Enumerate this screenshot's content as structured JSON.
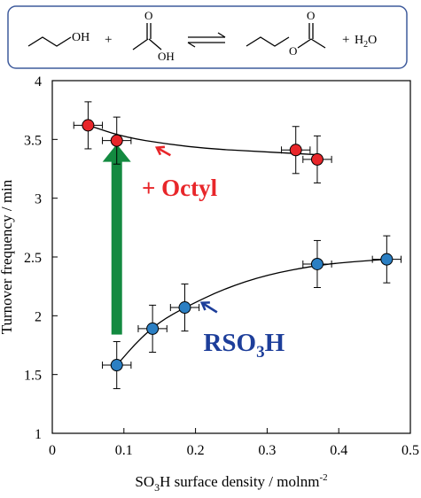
{
  "scheme": {
    "reactant1_label": "OH",
    "plus1": "+",
    "acid_carbonyl_o": "O",
    "acid_hydroxyl": "OH",
    "ester_carbonyl_o": "O",
    "ester_o": "O",
    "plus2": "+",
    "water_prefix": "H",
    "water_sub": "2",
    "water_suffix": "O"
  },
  "chart_data": {
    "type": "scatter",
    "ylabel": "Turnover frequency / min",
    "xlabel_prefix": "SO",
    "xlabel_sub": "3",
    "xlabel_rest": "H surface density / molnm",
    "xlabel_sup": "-2",
    "xlim": [
      0,
      0.5
    ],
    "ylim": [
      1,
      4
    ],
    "x_ticks": [
      "0",
      "0.1",
      "0.2",
      "0.3",
      "0.4",
      "0.5"
    ],
    "y_ticks": [
      "1",
      "1.5",
      "2",
      "2.5",
      "3",
      "3.5",
      "4"
    ],
    "grid": false,
    "series": [
      {
        "color": "#e8262a",
        "label_text": "+ Octyl",
        "points": [
          {
            "x": 0.05,
            "y": 3.62,
            "xerr": 0.02,
            "yerr": 0.2
          },
          {
            "x": 0.09,
            "y": 3.49,
            "xerr": 0.02,
            "yerr": 0.2
          },
          {
            "x": 0.34,
            "y": 3.41,
            "xerr": 0.02,
            "yerr": 0.2
          },
          {
            "x": 0.37,
            "y": 3.33,
            "xerr": 0.02,
            "yerr": 0.2
          }
        ]
      },
      {
        "color": "#2b7fc3",
        "label_prefix": "RSO",
        "label_sub": "3",
        "label_suffix": "H",
        "points": [
          {
            "x": 0.09,
            "y": 1.58,
            "xerr": 0.02,
            "yerr": 0.2
          },
          {
            "x": 0.14,
            "y": 1.89,
            "xerr": 0.02,
            "yerr": 0.2
          },
          {
            "x": 0.185,
            "y": 2.07,
            "xerr": 0.02,
            "yerr": 0.2
          },
          {
            "x": 0.37,
            "y": 2.44,
            "xerr": 0.02,
            "yerr": 0.2
          },
          {
            "x": 0.467,
            "y": 2.48,
            "xerr": 0.02,
            "yerr": 0.2
          }
        ]
      }
    ],
    "fit_upper": [
      [
        0.05,
        3.62
      ],
      [
        0.1,
        3.52
      ],
      [
        0.16,
        3.46
      ],
      [
        0.22,
        3.42
      ],
      [
        0.28,
        3.4
      ],
      [
        0.34,
        3.38
      ],
      [
        0.37,
        3.37
      ]
    ],
    "fit_lower": [
      [
        0.09,
        1.58
      ],
      [
        0.12,
        1.79
      ],
      [
        0.15,
        1.95
      ],
      [
        0.185,
        2.07
      ],
      [
        0.24,
        2.23
      ],
      [
        0.3,
        2.35
      ],
      [
        0.37,
        2.43
      ],
      [
        0.42,
        2.46
      ],
      [
        0.467,
        2.48
      ]
    ],
    "big_arrow": {
      "x": 0.09,
      "y_from": 1.84,
      "y_to": 3.46,
      "color": "#138a40"
    },
    "annotation_arrows": [
      {
        "from": [
          0.165,
          3.365
        ],
        "to": [
          0.146,
          3.43
        ],
        "color": "#e8262a"
      },
      {
        "from": [
          0.23,
          2.03
        ],
        "to": [
          0.209,
          2.11
        ],
        "color": "#1d3e9a"
      }
    ],
    "label_octyl_pos": [
      0.125,
      3.02
    ],
    "label_rso3h_pos": [
      0.211,
      1.7
    ]
  }
}
